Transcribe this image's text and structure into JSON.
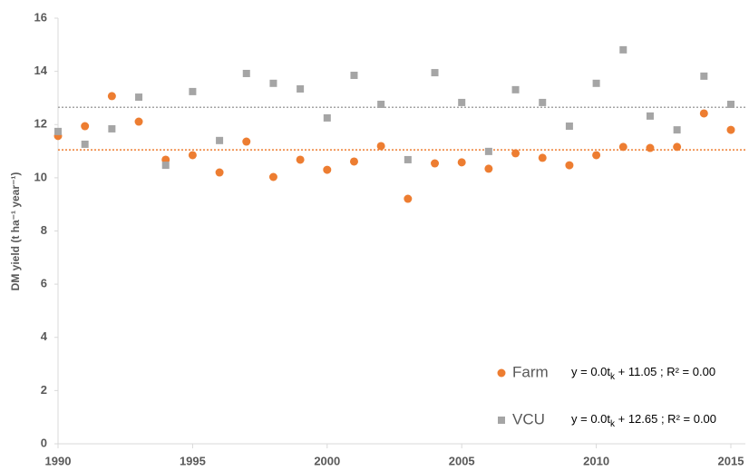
{
  "chart_data": {
    "type": "scatter",
    "ylabel": "DM yield (t ha⁻¹ year⁻¹)",
    "xlim": [
      1990,
      2015
    ],
    "xticks": [
      1990,
      1995,
      2000,
      2005,
      2010,
      2015
    ],
    "ylim": [
      0,
      16
    ],
    "yticks": [
      0,
      2,
      4,
      6,
      8,
      10,
      12,
      14,
      16
    ],
    "grid": false,
    "legend": "lower right",
    "x": [
      1990,
      1991,
      1992,
      1993,
      1994,
      1995,
      1996,
      1997,
      1998,
      1999,
      2000,
      2001,
      2002,
      2003,
      2004,
      2005,
      2006,
      2007,
      2008,
      2009,
      2010,
      2011,
      2012,
      2013,
      2014,
      2015
    ],
    "series": [
      {
        "name": "Farm",
        "color": "#ed7d31",
        "marker": "circle",
        "trend": 11.05,
        "equation": {
          "prefix": "y = 0.0t",
          "sub": "k",
          "suffix": " + 11.05 ; R² = 0.00"
        },
        "values": [
          11.57,
          11.94,
          13.07,
          12.11,
          10.68,
          10.85,
          10.2,
          11.36,
          10.03,
          10.68,
          10.3,
          10.61,
          11.19,
          9.21,
          10.54,
          10.58,
          10.34,
          10.92,
          10.75,
          10.47,
          10.85,
          11.16,
          11.12,
          11.16,
          12.42,
          11.8
        ]
      },
      {
        "name": "VCU",
        "color": "#a5a5a5",
        "marker": "square",
        "trend": 12.65,
        "equation": {
          "prefix": "y = 0.0t",
          "sub": "k",
          "suffix": " + 12.65 ; R² = 0.00"
        },
        "values": [
          11.74,
          11.26,
          11.84,
          13.03,
          10.47,
          13.24,
          11.4,
          13.92,
          13.55,
          13.34,
          12.25,
          13.85,
          12.76,
          10.68,
          13.95,
          12.83,
          10.99,
          13.31,
          12.83,
          11.94,
          13.55,
          14.81,
          12.32,
          11.8,
          13.82,
          12.76
        ]
      }
    ]
  }
}
